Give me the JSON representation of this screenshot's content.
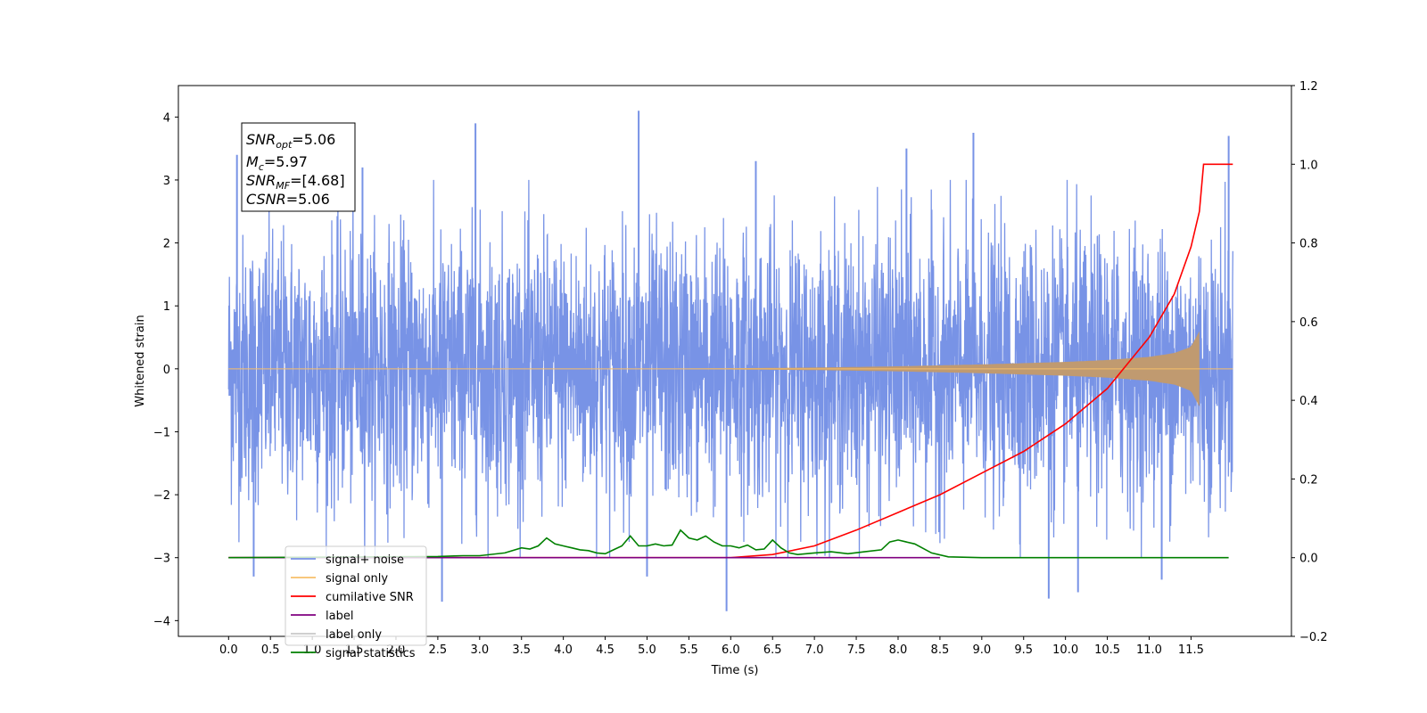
{
  "chart_data": {
    "type": "line",
    "title": "",
    "xlabel": "Time (s)",
    "ylabel": "Whitened strain",
    "xlim": [
      -0.6,
      12.7
    ],
    "ylim": [
      -4.25,
      4.5
    ],
    "y2lim": [
      -0.2,
      1.2
    ],
    "xticks": [
      "0.0",
      "0.5",
      "1.0",
      "1.5",
      "2.0",
      "2.5",
      "3.0",
      "3.5",
      "4.0",
      "4.5",
      "5.0",
      "5.5",
      "6.0",
      "6.5",
      "7.0",
      "7.5",
      "8.0",
      "8.5",
      "9.0",
      "9.5",
      "10.0",
      "10.5",
      "11.0",
      "11.5"
    ],
    "yticks": [
      "4",
      "3",
      "2",
      "1",
      "0",
      "−1",
      "−2",
      "−3",
      "−4"
    ],
    "y2ticks": [
      "1.2",
      "1.0",
      "0.8",
      "0.6",
      "0.4",
      "0.2",
      "0.0",
      "−0.2"
    ],
    "grid": false,
    "legend_position": "lower-left",
    "annotation": {
      "snr_opt": "=5.06",
      "mc": "=5.97",
      "snr_mf": "=[4.68]",
      "csnr": "=5.06"
    },
    "series": [
      {
        "name": "signal+ noise",
        "color": "#7893e6",
        "axis": "left",
        "kind": "noise",
        "x_range": [
          0.0,
          12.0
        ],
        "sigma": 1.05,
        "peak_values": [
          {
            "x": 0.1,
            "y": 3.4
          },
          {
            "x": 1.6,
            "y": 3.2
          },
          {
            "x": 2.95,
            "y": 3.9
          },
          {
            "x": 4.9,
            "y": 4.1
          },
          {
            "x": 6.3,
            "y": 3.3
          },
          {
            "x": 8.1,
            "y": 3.5
          },
          {
            "x": 8.9,
            "y": 3.75
          },
          {
            "x": 11.95,
            "y": 3.7
          },
          {
            "x": 0.3,
            "y": -3.3
          },
          {
            "x": 2.55,
            "y": -3.7
          },
          {
            "x": 5.0,
            "y": -3.3
          },
          {
            "x": 5.95,
            "y": -3.85
          },
          {
            "x": 9.8,
            "y": -3.65
          },
          {
            "x": 10.15,
            "y": -3.55
          },
          {
            "x": 11.15,
            "y": -3.35
          }
        ]
      },
      {
        "name": "signal only",
        "color": "#c09a70",
        "axis": "left",
        "kind": "chirp",
        "x": [
          0.0,
          5.0,
          7.0,
          8.0,
          9.0,
          10.0,
          10.5,
          11.0,
          11.3,
          11.5,
          11.58,
          11.6
        ],
        "envelope": [
          0.0,
          0.0,
          0.02,
          0.04,
          0.07,
          0.11,
          0.14,
          0.19,
          0.25,
          0.35,
          0.55,
          0.6
        ]
      },
      {
        "name": "cumilative SNR",
        "color": "#ff0000",
        "axis": "right",
        "x": [
          0.0,
          6.0,
          6.5,
          7.0,
          7.5,
          8.0,
          8.5,
          9.0,
          9.5,
          10.0,
          10.5,
          11.0,
          11.3,
          11.5,
          11.6,
          11.65,
          12.0
        ],
        "values": [
          0.0,
          0.0,
          0.008,
          0.03,
          0.07,
          0.115,
          0.16,
          0.215,
          0.27,
          0.34,
          0.43,
          0.56,
          0.67,
          0.79,
          0.88,
          1.0,
          1.0
        ]
      },
      {
        "name": "label",
        "color": "#800080",
        "axis": "right",
        "x": [
          0.0,
          8.5
        ],
        "values": [
          0.0,
          0.0
        ]
      },
      {
        "name": "label only",
        "color": "#c8c8c8",
        "axis": "right",
        "x": [],
        "values": []
      },
      {
        "name": "signal statistics",
        "color": "#008000",
        "axis": "right",
        "x": [
          0.0,
          2.5,
          2.8,
          3.0,
          3.3,
          3.5,
          3.6,
          3.7,
          3.8,
          3.9,
          4.0,
          4.1,
          4.2,
          4.3,
          4.4,
          4.5,
          4.6,
          4.7,
          4.8,
          4.9,
          5.0,
          5.1,
          5.2,
          5.3,
          5.4,
          5.5,
          5.6,
          5.7,
          5.8,
          5.9,
          6.0,
          6.1,
          6.2,
          6.3,
          6.4,
          6.5,
          6.6,
          6.7,
          6.8,
          6.9,
          7.0,
          7.2,
          7.4,
          7.6,
          7.8,
          7.9,
          8.0,
          8.2,
          8.4,
          8.6,
          9.0,
          9.5,
          10.0,
          11.0,
          11.95
        ],
        "values": [
          0.0,
          0.003,
          0.005,
          0.005,
          0.012,
          0.025,
          0.022,
          0.03,
          0.05,
          0.035,
          0.03,
          0.025,
          0.02,
          0.018,
          0.012,
          0.01,
          0.02,
          0.03,
          0.055,
          0.03,
          0.03,
          0.035,
          0.03,
          0.032,
          0.07,
          0.05,
          0.045,
          0.055,
          0.04,
          0.03,
          0.03,
          0.025,
          0.032,
          0.02,
          0.022,
          0.045,
          0.025,
          0.012,
          0.008,
          0.01,
          0.012,
          0.015,
          0.01,
          0.015,
          0.02,
          0.04,
          0.045,
          0.035,
          0.012,
          0.002,
          0.0,
          0.0,
          0.0,
          0.0,
          0.0
        ]
      }
    ]
  }
}
